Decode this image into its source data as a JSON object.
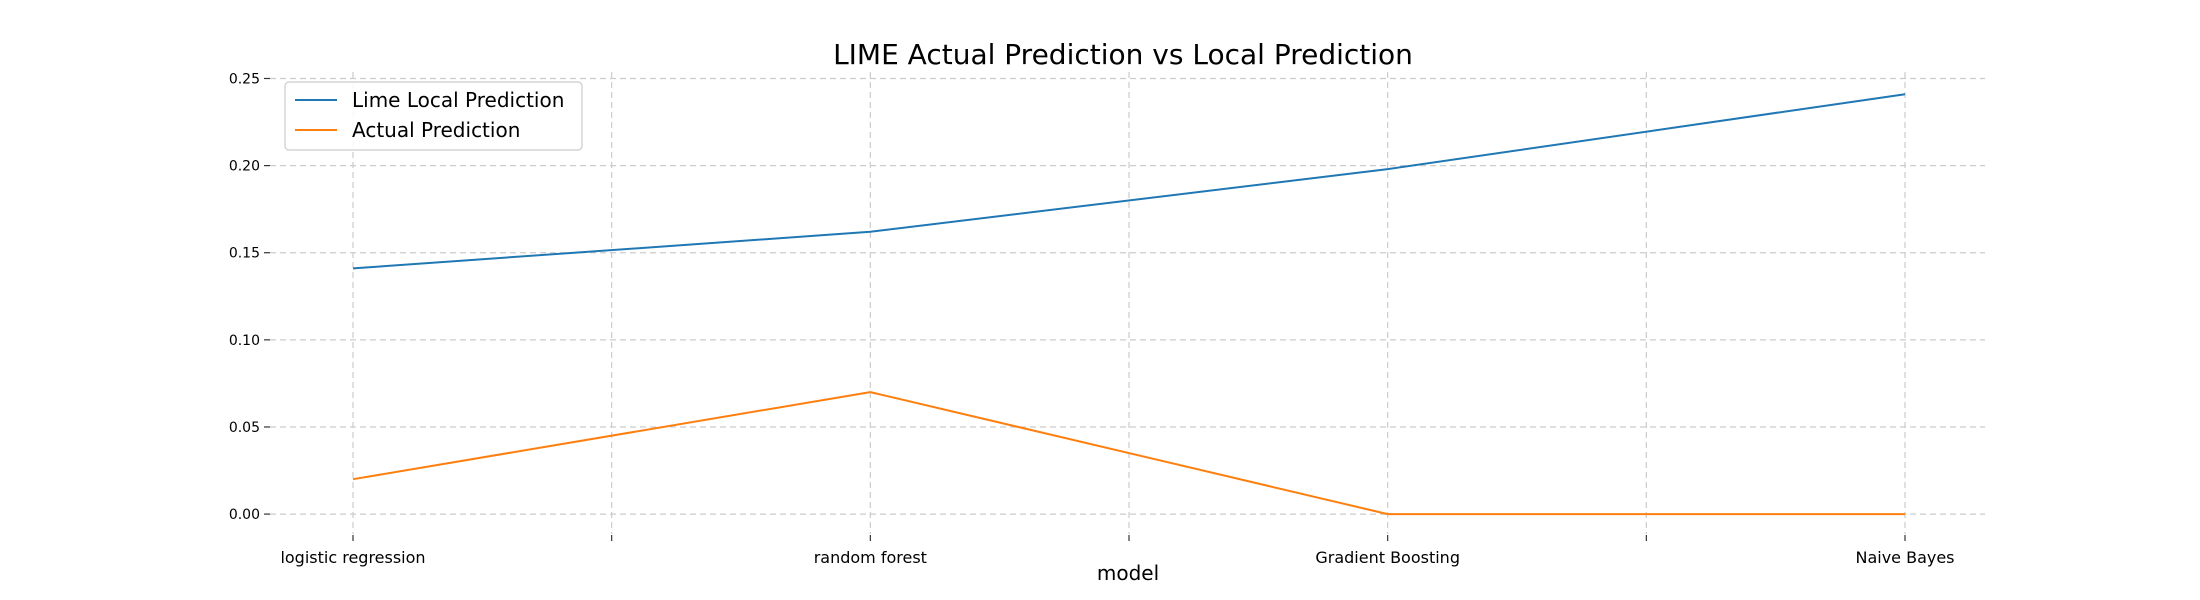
{
  "chart_data": {
    "type": "line",
    "title": "LIME Actual Prediction vs Local Prediction",
    "xlabel": "model",
    "ylabel": "",
    "categories": [
      "logistic regression",
      "random forest",
      "Gradient Boosting",
      "Naive Bayes"
    ],
    "y_ticks": [
      "0.00",
      "0.05",
      "0.10",
      "0.15",
      "0.20",
      "0.25"
    ],
    "ylim": [
      -0.012,
      0.252
    ],
    "grid": true,
    "legend_position": "top-left",
    "series": [
      {
        "name": "Lime Local Prediction",
        "color": "#1f77b4",
        "values": [
          0.141,
          0.162,
          0.198,
          0.241
        ]
      },
      {
        "name": "Actual Prediction",
        "color": "#ff7f0e",
        "values": [
          0.02,
          0.07,
          0.0,
          0.0
        ]
      }
    ]
  }
}
